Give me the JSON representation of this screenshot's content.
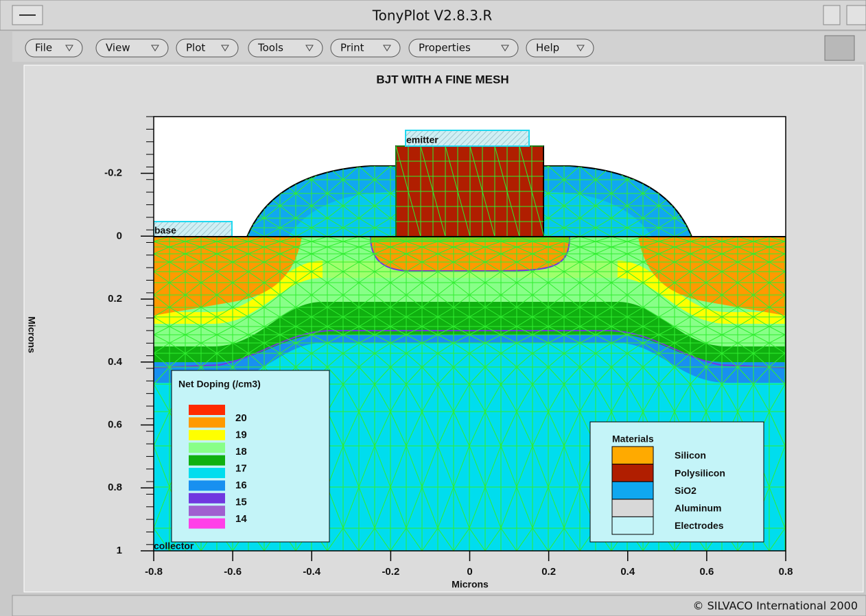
{
  "window": {
    "title": "TonyPlot V2.8.3.R",
    "menus": [
      "File",
      "View",
      "Plot",
      "Tools",
      "Print",
      "Properties",
      "Help"
    ],
    "footer": "© SILVACO International 2000"
  },
  "chart_data": {
    "type": "structure",
    "title": "BJT WITH A FINE MESH",
    "x_label": "Microns",
    "y_label": "Microns",
    "xlim": [
      -0.8,
      0.8
    ],
    "ylim": [
      -0.38,
      1
    ],
    "y_inverted": true,
    "xticks": [
      -0.8,
      -0.6,
      -0.4,
      -0.2,
      0,
      0.2,
      0.4,
      0.6,
      0.8
    ],
    "yticks": [
      -0.2,
      0,
      0.2,
      0.4,
      0.6,
      0.8,
      1
    ],
    "electrodes": [
      "emitter",
      "base",
      "collector"
    ],
    "doping_legend": {
      "title": "Net Doping (/cm3)",
      "levels": [
        20,
        19,
        18,
        17,
        16,
        15,
        14
      ],
      "colors": [
        "#ff2a00",
        "#ff9a00",
        "#ffff00",
        "#88ff88",
        "#10b010",
        "#00ddee",
        "#1890f0",
        "#7038e0",
        "#a060d0",
        "#ff40e8"
      ]
    },
    "materials_legend": {
      "title": "Materials",
      "items": [
        {
          "name": "Silicon",
          "color": "#ffaa00"
        },
        {
          "name": "Polysilicon",
          "color": "#b01e00"
        },
        {
          "name": "SiO2",
          "color": "#10a8f0"
        },
        {
          "name": "Aluminum",
          "color": "#d8d8d8"
        },
        {
          "name": "Electrodes",
          "color": "#c4f4f8"
        }
      ]
    }
  }
}
